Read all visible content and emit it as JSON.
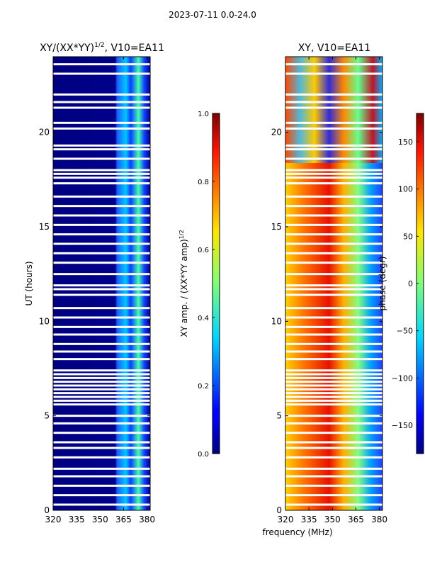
{
  "suptitle": "2023-07-11 0.0-24.0",
  "xlabel_shared": "frequency (MHz)",
  "chart_data": [
    {
      "type": "heatmap",
      "title_main": "XY/(XX*YY)",
      "title_sup": "1/2",
      "title_tail": ", V10=EA11",
      "xlabel": "frequency (MHz)",
      "ylabel": "UT (hours)",
      "xlim": [
        320,
        382
      ],
      "ylim": [
        0,
        24
      ],
      "xticks": [
        320,
        335,
        350,
        365,
        380
      ],
      "yticks": [
        0,
        5,
        10,
        15,
        20
      ],
      "colorbar": {
        "label_main": "XY amp. / (XX*YY amp)",
        "label_sup": "1/2",
        "range": [
          0.0,
          1.0
        ],
        "ticks": [
          "0.0",
          "0.2",
          "0.4",
          "0.6",
          "0.8",
          "1.0"
        ],
        "tick_values": [
          0.0,
          0.2,
          0.4,
          0.6,
          0.8,
          1.0
        ]
      }
    },
    {
      "type": "heatmap",
      "title": "XY, V10=EA11",
      "xlabel": "frequency (MHz)",
      "ylabel": "",
      "xlim": [
        320,
        382
      ],
      "ylim": [
        0,
        24
      ],
      "xticks": [
        320,
        335,
        350,
        365,
        380
      ],
      "yticks": [
        0,
        5,
        10,
        15,
        20
      ],
      "colorbar": {
        "label": "phase (degr)",
        "range": [
          -180,
          180
        ],
        "ticks": [
          "−150",
          "−100",
          "−50",
          "0",
          "50",
          "100",
          "150"
        ],
        "tick_values": [
          -150,
          -100,
          -50,
          0,
          50,
          100,
          150
        ]
      }
    }
  ],
  "flagged_rows_ut": [
    0.3,
    0.8,
    1.3,
    1.8,
    2.2,
    2.8,
    3.3,
    3.6,
    4.1,
    4.6,
    5.0,
    5.6,
    5.8,
    6.0,
    6.2,
    6.4,
    6.6,
    6.8,
    7.0,
    7.2,
    7.4,
    8.0,
    8.4,
    8.8,
    9.3,
    9.7,
    10.2,
    10.7,
    11.4,
    11.7,
    11.9,
    12.5,
    13.1,
    13.6,
    14.1,
    14.6,
    15.1,
    15.6,
    16.1,
    16.6,
    17.3,
    17.6,
    17.8,
    18.0,
    18.6,
    19.1,
    19.3,
    20.2,
    20.5,
    21.3,
    21.6,
    22.0,
    23.1,
    23.6
  ]
}
